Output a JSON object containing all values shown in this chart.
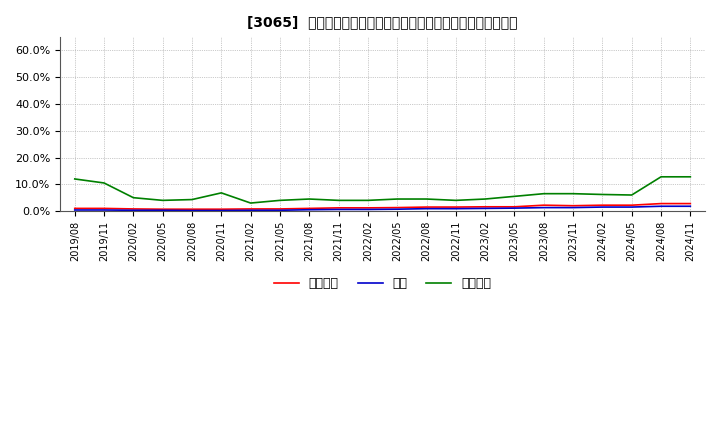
{
  "title": "[3065]  売上債権、在庫、買入債務の総資産に対する比率の推移",
  "legend_labels": [
    "売上債権",
    "在庫",
    "買入債務"
  ],
  "line_colors": [
    "#ff0000",
    "#0000cc",
    "#008000"
  ],
  "background_color": "#ffffff",
  "plot_background": "#ffffff",
  "ylim": [
    0.0,
    0.65
  ],
  "yticks": [
    0.0,
    0.1,
    0.2,
    0.3,
    0.4,
    0.5,
    0.6
  ],
  "dates": [
    "2019/08",
    "2019/11",
    "2020/02",
    "2020/05",
    "2020/08",
    "2020/11",
    "2021/02",
    "2021/05",
    "2021/08",
    "2021/11",
    "2022/02",
    "2022/05",
    "2022/08",
    "2022/11",
    "2023/02",
    "2023/05",
    "2023/08",
    "2023/11",
    "2024/02",
    "2024/05",
    "2024/08",
    "2024/11"
  ],
  "uriken": [
    0.01,
    0.01,
    0.008,
    0.007,
    0.007,
    0.007,
    0.008,
    0.008,
    0.01,
    0.012,
    0.012,
    0.013,
    0.015,
    0.015,
    0.016,
    0.016,
    0.022,
    0.02,
    0.022,
    0.022,
    0.028,
    0.028
  ],
  "zaiko": [
    0.004,
    0.004,
    0.003,
    0.003,
    0.002,
    0.002,
    0.003,
    0.003,
    0.005,
    0.006,
    0.006,
    0.007,
    0.009,
    0.009,
    0.01,
    0.011,
    0.013,
    0.013,
    0.015,
    0.015,
    0.018,
    0.018
  ],
  "kaiire": [
    0.12,
    0.105,
    0.05,
    0.04,
    0.043,
    0.068,
    0.03,
    0.04,
    0.045,
    0.04,
    0.04,
    0.045,
    0.045,
    0.04,
    0.045,
    0.055,
    0.065,
    0.065,
    0.062,
    0.06,
    0.128,
    0.128
  ]
}
